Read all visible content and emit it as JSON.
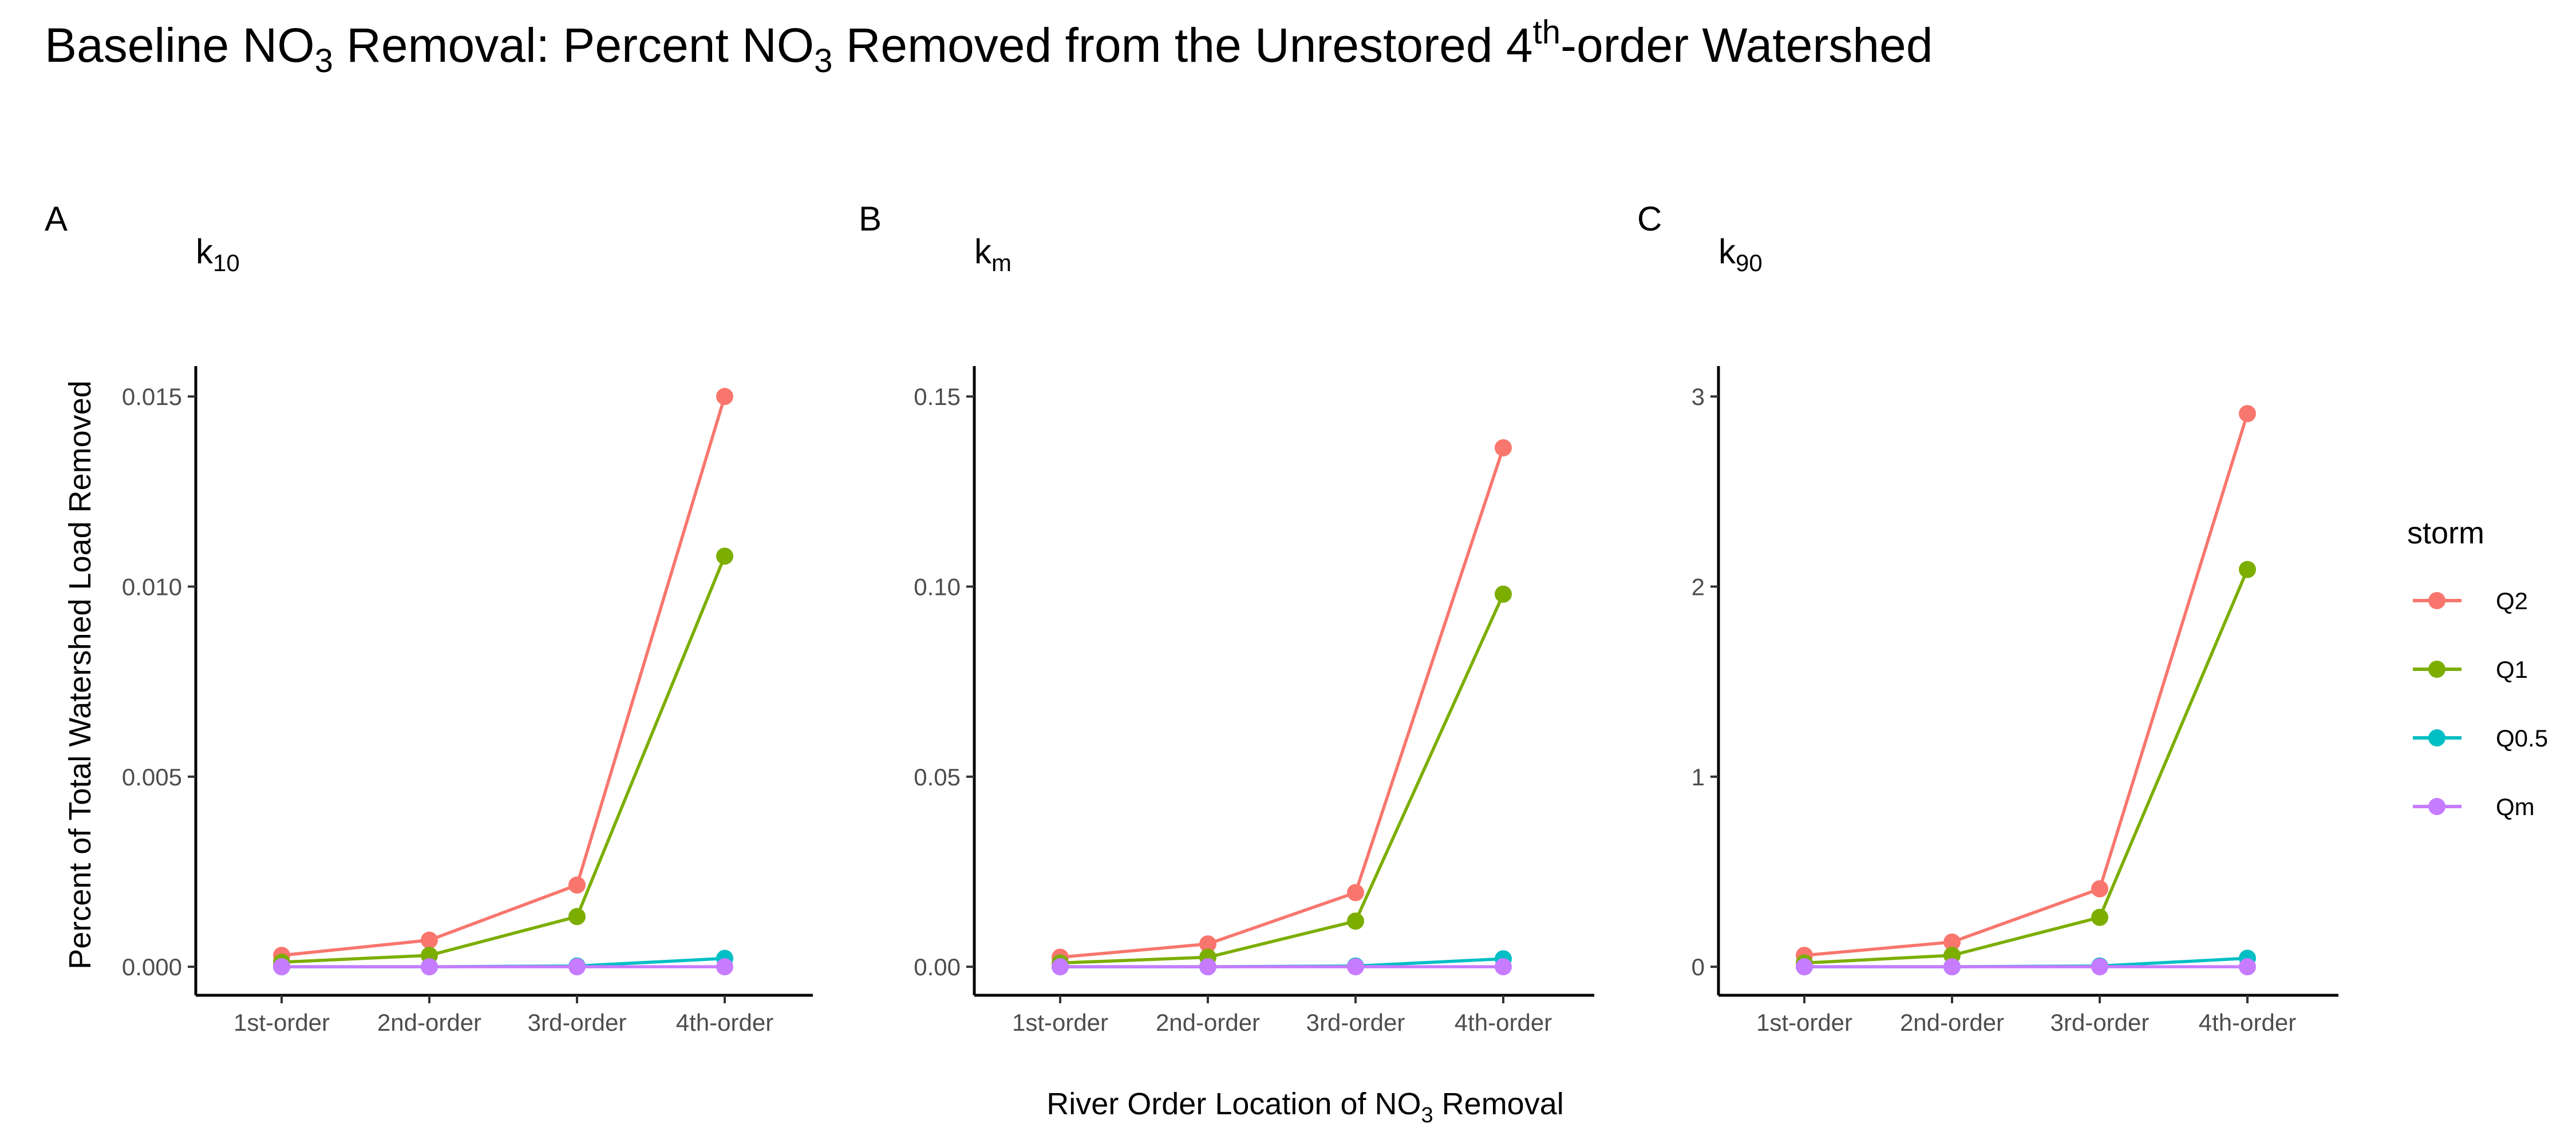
{
  "figure": {
    "title": {
      "t1": "Baseline NO",
      "t1_sub": "3",
      "t2": " Removal: Percent NO",
      "t2_sub": "3",
      "t3": " Removed from the Unrestored 4",
      "t3_sup": "th",
      "t4": "-order Watershed"
    },
    "ylabel": "Percent of Total Watershed Load Removed",
    "xlabel": {
      "t1": "River Order Location of NO",
      "t1_sub": "3",
      "t2": " Removal"
    },
    "legend": {
      "title": "storm",
      "entries": [
        "Q2",
        "Q1",
        "Q0.5",
        "Qm"
      ]
    },
    "colors": {
      "Q2": "#F8766D",
      "Q1": "#7CAE00",
      "Q0.5": "#00BFC4",
      "Qm": "#C77CFF"
    }
  },
  "chart_data": [
    {
      "type": "line",
      "panel": "A",
      "k_base": "k",
      "k_sub": "10",
      "categories": [
        "1st-order",
        "2nd-order",
        "3rd-order",
        "4th-order"
      ],
      "ylim": [
        -0.00075,
        0.0158
      ],
      "yticks": [
        0,
        0.005,
        0.01,
        0.015
      ],
      "ytick_labels": [
        "0.000",
        "0.005",
        "0.010",
        "0.015"
      ],
      "series": [
        {
          "name": "Q2",
          "values": [
            0.0003,
            0.0007,
            0.00215,
            0.015
          ]
        },
        {
          "name": "Q1",
          "values": [
            0.00012,
            0.0003,
            0.00132,
            0.0108
          ]
        },
        {
          "name": "Q0.5",
          "values": [
            0.0,
            0.0,
            2e-05,
            0.00022
          ]
        },
        {
          "name": "Qm",
          "values": [
            0.0,
            0.0,
            0.0,
            0.0
          ]
        }
      ]
    },
    {
      "type": "line",
      "panel": "B",
      "k_base": "k",
      "k_sub": "m",
      "categories": [
        "1st-order",
        "2nd-order",
        "3rd-order",
        "4th-order"
      ],
      "ylim": [
        -0.0075,
        0.158
      ],
      "yticks": [
        0,
        0.05,
        0.1,
        0.15
      ],
      "ytick_labels": [
        "0.00",
        "0.05",
        "0.10",
        "0.15"
      ],
      "series": [
        {
          "name": "Q2",
          "values": [
            0.0025,
            0.006,
            0.0195,
            0.1365
          ]
        },
        {
          "name": "Q1",
          "values": [
            0.001,
            0.0025,
            0.012,
            0.098
          ]
        },
        {
          "name": "Q0.5",
          "values": [
            0.0,
            0.0,
            0.0002,
            0.0021
          ]
        },
        {
          "name": "Qm",
          "values": [
            0.0,
            0.0,
            0.0,
            0.0
          ]
        }
      ]
    },
    {
      "type": "line",
      "panel": "C",
      "k_base": "k",
      "k_sub": "90",
      "categories": [
        "1st-order",
        "2nd-order",
        "3rd-order",
        "4th-order"
      ],
      "ylim": [
        -0.15,
        3.16
      ],
      "yticks": [
        0,
        1,
        2,
        3
      ],
      "ytick_labels": [
        "0",
        "1",
        "2",
        "3"
      ],
      "series": [
        {
          "name": "Q2",
          "values": [
            0.06,
            0.13,
            0.41,
            2.91
          ]
        },
        {
          "name": "Q1",
          "values": [
            0.02,
            0.06,
            0.26,
            2.09
          ]
        },
        {
          "name": "Q0.5",
          "values": [
            0.0,
            0.0,
            0.004,
            0.045
          ]
        },
        {
          "name": "Qm",
          "values": [
            0.0,
            0.0,
            0.0,
            0.0
          ]
        }
      ]
    }
  ]
}
